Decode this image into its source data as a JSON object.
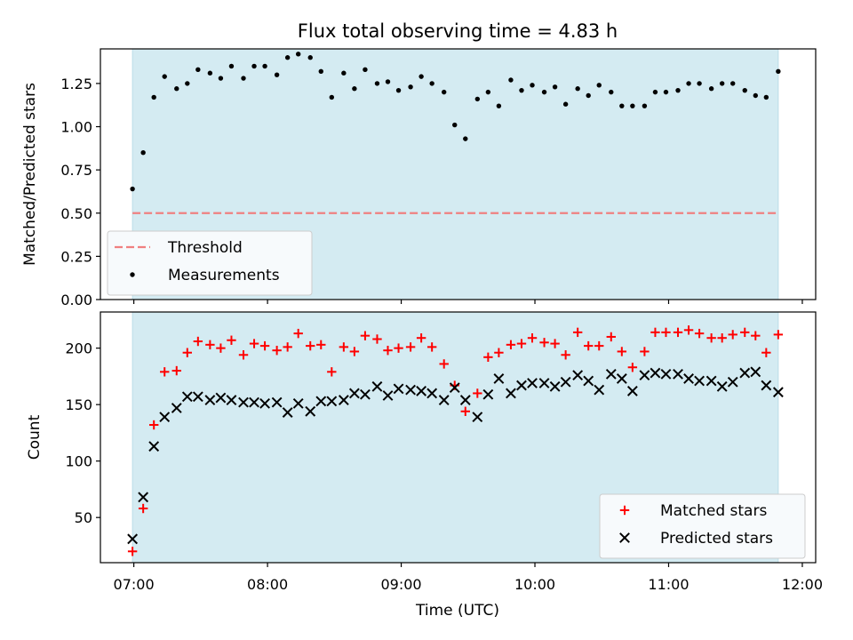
{
  "chart_data": {
    "type": "scatter",
    "title": "Flux total observing time = 4.83 h",
    "xlabel": "Time (UTC)",
    "x_ticks": [
      "07:00",
      "08:00",
      "09:00",
      "10:00",
      "11:00",
      "12:00"
    ],
    "x_tick_hours": [
      7,
      8,
      9,
      10,
      11,
      12
    ],
    "xlim": [
      6.75,
      12.1
    ],
    "observing_window": [
      6.99,
      11.82
    ],
    "window_color": "#d4ebf2",
    "panels": [
      {
        "ylabel": "Matched/Predicted stars",
        "ylim": [
          0,
          1.45
        ],
        "y_ticks": [
          "0.00",
          "0.25",
          "0.50",
          "0.75",
          "1.00",
          "1.25"
        ],
        "y_tick_values": [
          0,
          0.25,
          0.5,
          0.75,
          1.0,
          1.25
        ],
        "legend_position": "lower-left",
        "series": [
          {
            "name": "Threshold",
            "style": "dashed-line",
            "color": "#f08080",
            "x": [
              6.99,
              11.82
            ],
            "y": [
              0.5,
              0.5
            ]
          },
          {
            "name": "Measurements",
            "style": "dot",
            "color": "#000000",
            "x": [
              6.99,
              7.07,
              7.15,
              7.23,
              7.32,
              7.4,
              7.48,
              7.57,
              7.65,
              7.73,
              7.82,
              7.9,
              7.98,
              8.07,
              8.15,
              8.23,
              8.32,
              8.4,
              8.48,
              8.57,
              8.65,
              8.73,
              8.82,
              8.9,
              8.98,
              9.07,
              9.15,
              9.23,
              9.32,
              9.4,
              9.48,
              9.57,
              9.65,
              9.73,
              9.82,
              9.9,
              9.98,
              10.07,
              10.15,
              10.23,
              10.32,
              10.4,
              10.48,
              10.57,
              10.65,
              10.73,
              10.82,
              10.9,
              10.98,
              11.07,
              11.15,
              11.23,
              11.32,
              11.4,
              11.48,
              11.57,
              11.65,
              11.73,
              11.82
            ],
            "y": [
              0.64,
              0.85,
              1.17,
              1.29,
              1.22,
              1.25,
              1.33,
              1.31,
              1.28,
              1.35,
              1.28,
              1.35,
              1.35,
              1.3,
              1.4,
              1.42,
              1.4,
              1.32,
              1.17,
              1.31,
              1.22,
              1.33,
              1.25,
              1.26,
              1.21,
              1.23,
              1.29,
              1.25,
              1.2,
              1.01,
              0.93,
              1.16,
              1.2,
              1.12,
              1.27,
              1.21,
              1.24,
              1.2,
              1.23,
              1.13,
              1.22,
              1.18,
              1.24,
              1.2,
              1.12,
              1.12,
              1.12,
              1.2,
              1.2,
              1.21,
              1.25,
              1.25,
              1.22,
              1.25,
              1.25,
              1.21,
              1.18,
              1.17,
              1.32
            ]
          }
        ]
      },
      {
        "ylabel": "Count",
        "ylim": [
          10,
          232
        ],
        "y_ticks": [
          "50",
          "100",
          "150",
          "200"
        ],
        "y_tick_values": [
          50,
          100,
          150,
          200
        ],
        "legend_position": "lower-right",
        "series": [
          {
            "name": "Matched stars",
            "style": "plus",
            "color": "#ff0000",
            "x": [
              6.99,
              7.07,
              7.15,
              7.23,
              7.32,
              7.4,
              7.48,
              7.57,
              7.65,
              7.73,
              7.82,
              7.9,
              7.98,
              8.07,
              8.15,
              8.23,
              8.32,
              8.4,
              8.48,
              8.57,
              8.65,
              8.73,
              8.82,
              8.9,
              8.98,
              9.07,
              9.15,
              9.23,
              9.32,
              9.4,
              9.48,
              9.57,
              9.65,
              9.73,
              9.82,
              9.9,
              9.98,
              10.07,
              10.15,
              10.23,
              10.32,
              10.4,
              10.48,
              10.57,
              10.65,
              10.73,
              10.82,
              10.9,
              10.98,
              11.07,
              11.15,
              11.23,
              11.32,
              11.4,
              11.48,
              11.57,
              11.65,
              11.73,
              11.82
            ],
            "y": [
              20,
              58,
              132,
              179,
              180,
              196,
              206,
              203,
              200,
              207,
              194,
              204,
              202,
              198,
              201,
              213,
              202,
              203,
              179,
              201,
              197,
              211,
              208,
              198,
              200,
              201,
              209,
              201,
              186,
              167,
              144,
              160,
              192,
              196,
              203,
              204,
              209,
              205,
              204,
              194,
              214,
              202,
              202,
              210,
              197,
              183,
              197,
              214,
              214,
              214,
              216,
              213,
              209,
              209,
              212,
              214,
              211,
              196,
              212
            ]
          },
          {
            "name": "Predicted stars",
            "style": "x",
            "color": "#000000",
            "x": [
              6.99,
              7.07,
              7.15,
              7.23,
              7.32,
              7.4,
              7.48,
              7.57,
              7.65,
              7.73,
              7.82,
              7.9,
              7.98,
              8.07,
              8.15,
              8.23,
              8.32,
              8.4,
              8.48,
              8.57,
              8.65,
              8.73,
              8.82,
              8.9,
              8.98,
              9.07,
              9.15,
              9.23,
              9.32,
              9.4,
              9.48,
              9.57,
              9.65,
              9.73,
              9.82,
              9.9,
              9.98,
              10.07,
              10.15,
              10.23,
              10.32,
              10.4,
              10.48,
              10.57,
              10.65,
              10.73,
              10.82,
              10.9,
              10.98,
              11.07,
              11.15,
              11.23,
              11.32,
              11.4,
              11.48,
              11.57,
              11.65,
              11.73,
              11.82
            ],
            "y": [
              31,
              68,
              113,
              139,
              147,
              157,
              157,
              154,
              156,
              154,
              152,
              152,
              151,
              152,
              143,
              151,
              144,
              153,
              153,
              154,
              160,
              159,
              166,
              158,
              164,
              163,
              162,
              160,
              154,
              165,
              154,
              139,
              159,
              173,
              160,
              167,
              169,
              169,
              166,
              170,
              176,
              171,
              163,
              177,
              173,
              162,
              176,
              178,
              177,
              177,
              173,
              171,
              171,
              166,
              170,
              178,
              179,
              167,
              161
            ]
          }
        ]
      }
    ]
  }
}
